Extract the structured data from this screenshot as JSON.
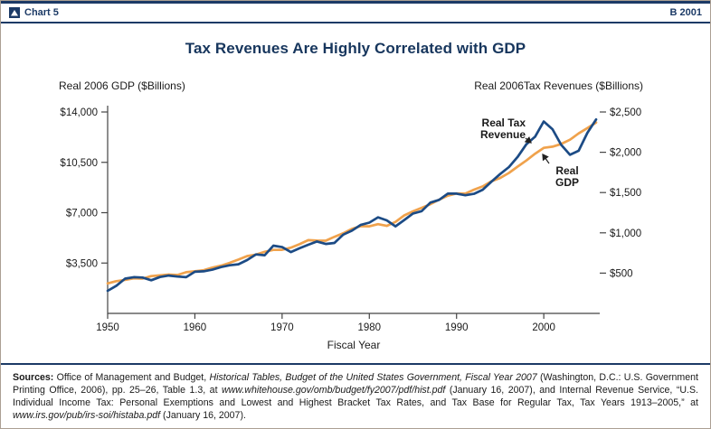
{
  "header": {
    "chart_label": "Chart 5",
    "edition_code": "B 2001"
  },
  "chart_data": {
    "type": "line",
    "title": "Tax Revenues Are Highly Correlated with GDP",
    "x_axis": {
      "label": "Fiscal Year",
      "tick_years": [
        1950,
        1960,
        1970,
        1980,
        1990,
        2000
      ],
      "range": [
        1950,
        2006
      ]
    },
    "left_axis": {
      "title": "Real 2006 GDP ($Billions)",
      "tick_labels": [
        "$14,000",
        "$10,500",
        "$7,000",
        "$3,500"
      ],
      "tick_values": [
        14000,
        10500,
        7000,
        3500
      ],
      "min": 0,
      "max": 14000
    },
    "right_axis": {
      "title": "Real 2006Tax Revenues ($Billions)",
      "tick_labels": [
        "$2,500",
        "$2,000",
        "$1,500",
        "$1,000",
        "$500"
      ],
      "tick_values": [
        2500,
        2000,
        1500,
        1000,
        500
      ],
      "min": 0,
      "max": 2500
    },
    "years": [
      1950,
      1951,
      1952,
      1953,
      1954,
      1955,
      1956,
      1957,
      1958,
      1959,
      1960,
      1961,
      1962,
      1963,
      1964,
      1965,
      1966,
      1967,
      1968,
      1969,
      1970,
      1971,
      1972,
      1973,
      1974,
      1975,
      1976,
      1977,
      1978,
      1979,
      1980,
      1981,
      1982,
      1983,
      1984,
      1985,
      1986,
      1987,
      1988,
      1989,
      1990,
      1991,
      1992,
      1993,
      1994,
      1995,
      1996,
      1997,
      1998,
      1999,
      2000,
      2001,
      2002,
      2003,
      2004,
      2005,
      2006
    ],
    "series": [
      {
        "name": "Real GDP",
        "axis": "left",
        "color": "#f0a24c",
        "values": [
          2083,
          2244,
          2330,
          2438,
          2420,
          2594,
          2644,
          2697,
          2671,
          2861,
          2932,
          3000,
          3182,
          3321,
          3515,
          3740,
          3984,
          4084,
          4281,
          4413,
          4421,
          4570,
          4811,
          5089,
          5063,
          5052,
          5322,
          5567,
          5878,
          6063,
          6050,
          6202,
          6082,
          6357,
          6814,
          7095,
          7341,
          7589,
          7903,
          8182,
          8336,
          8322,
          8599,
          8829,
          9184,
          9413,
          9762,
          10201,
          10627,
          11099,
          11506,
          11592,
          11777,
          12073,
          12512,
          12880,
          13266
        ]
      },
      {
        "name": "Real Tax Revenue",
        "axis": "right",
        "color": "#1c4b85",
        "values": [
          280,
          343,
          432,
          449,
          445,
          411,
          452,
          470,
          457,
          449,
          517,
          522,
          543,
          575,
          598,
          610,
          663,
          732,
          722,
          841,
          823,
          761,
          808,
          852,
          892,
          862,
          874,
          978,
          1027,
          1098,
          1127,
          1193,
          1155,
          1081,
          1159,
          1240,
          1269,
          1375,
          1409,
          1487,
          1486,
          1466,
          1484,
          1535,
          1636,
          1730,
          1816,
          1942,
          2100,
          2193,
          2382,
          2286,
          2092,
          1969,
          2019,
          2242,
          2407
        ]
      }
    ],
    "annotations": [
      {
        "lines": [
          "Real Tax",
          "Revenue"
        ],
        "target_series": "Real Tax Revenue"
      },
      {
        "lines": [
          "Real",
          "GDP"
        ],
        "target_series": "Real GDP"
      }
    ],
    "grid": "off",
    "legend": "inline-annotations"
  },
  "sources": {
    "segments": [
      {
        "text": "Sources: ",
        "bold": true,
        "italic": false
      },
      {
        "text": "Office of Management and Budget, ",
        "bold": false,
        "italic": false
      },
      {
        "text": "Historical Tables, Budget of the United States Government, Fiscal Year 2007 ",
        "bold": false,
        "italic": true
      },
      {
        "text": "(Washington, D.C.: U.S. Government Printing Office, 2006), pp. 25–26, Table 1.3, at ",
        "bold": false,
        "italic": false
      },
      {
        "text": "www.whitehouse.gov/omb/budget/fy2007/pdf/hist.pdf ",
        "bold": false,
        "italic": true
      },
      {
        "text": "(January 16, 2007), and Internal Revenue Service, “U.S. Individual Income Tax: Personal Exemptions and Lowest and Highest Bracket Tax Rates, and Tax Base for Regular Tax, Tax Years 1913–2005,” at ",
        "bold": false,
        "italic": false
      },
      {
        "text": "www.irs.gov/pub/irs-soi/histaba.pdf ",
        "bold": false,
        "italic": true
      },
      {
        "text": "(January 16, 2007).",
        "bold": false,
        "italic": false
      }
    ]
  }
}
